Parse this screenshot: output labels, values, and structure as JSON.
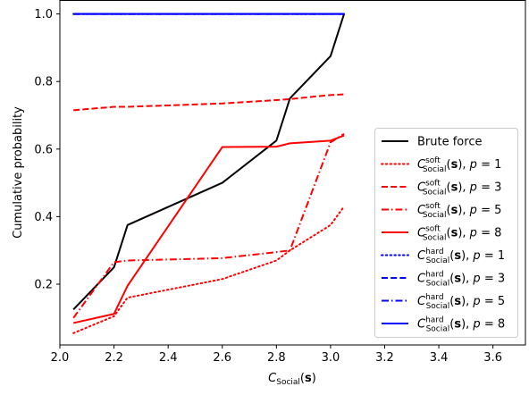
{
  "chart_data": {
    "type": "line",
    "title": "",
    "xlabel": "C_Social(s)",
    "ylabel": "Cumulative probability",
    "xlim": [
      2.0,
      3.72
    ],
    "ylim": [
      0.02,
      1.04
    ],
    "xticks": [
      "2.0",
      "2.2",
      "2.4",
      "2.6",
      "2.8",
      "3.0",
      "3.2",
      "3.4",
      "3.6"
    ],
    "yticks": [
      "0.2",
      "0.4",
      "0.6",
      "0.8",
      "1.0"
    ],
    "grid": false,
    "legend_position": "lower-right",
    "series": [
      {
        "key": "brute",
        "name": "Brute force",
        "color": "#000000",
        "style": "solid",
        "points": [
          [
            2.05,
            0.125
          ],
          [
            2.2,
            0.25
          ],
          [
            2.25,
            0.375
          ],
          [
            2.6,
            0.5
          ],
          [
            2.8,
            0.625
          ],
          [
            2.85,
            0.75
          ],
          [
            3.0,
            0.875
          ],
          [
            3.05,
            1.0
          ]
        ]
      },
      {
        "key": "soft1",
        "name": "C_Social^soft(s), p = 1",
        "color": "#ff0000",
        "style": "dotted",
        "points": [
          [
            2.05,
            0.055
          ],
          [
            2.2,
            0.105
          ],
          [
            2.25,
            0.16
          ],
          [
            2.6,
            0.215
          ],
          [
            2.8,
            0.27
          ],
          [
            2.85,
            0.3
          ],
          [
            3.0,
            0.375
          ],
          [
            3.05,
            0.43
          ]
        ]
      },
      {
        "key": "soft3",
        "name": "C_Social^soft(s), p = 3",
        "color": "#ff0000",
        "style": "dashed",
        "points": [
          [
            2.05,
            0.715
          ],
          [
            2.2,
            0.725
          ],
          [
            2.25,
            0.725
          ],
          [
            2.6,
            0.735
          ],
          [
            2.8,
            0.745
          ],
          [
            2.85,
            0.748
          ],
          [
            3.0,
            0.76
          ],
          [
            3.05,
            0.762
          ]
        ]
      },
      {
        "key": "soft5",
        "name": "C_Social^soft(s), p = 5",
        "color": "#ff0000",
        "style": "dashdot",
        "points": [
          [
            2.05,
            0.1
          ],
          [
            2.2,
            0.265
          ],
          [
            2.25,
            0.27
          ],
          [
            2.6,
            0.277
          ],
          [
            2.8,
            0.295
          ],
          [
            2.85,
            0.3
          ],
          [
            3.0,
            0.62
          ],
          [
            3.05,
            0.645
          ]
        ]
      },
      {
        "key": "soft8",
        "name": "C_Social^soft(s), p = 8",
        "color": "#ff0000",
        "style": "solid",
        "points": [
          [
            2.05,
            0.085
          ],
          [
            2.2,
            0.112
          ],
          [
            2.25,
            0.195
          ],
          [
            2.6,
            0.606
          ],
          [
            2.8,
            0.607
          ],
          [
            2.85,
            0.617
          ],
          [
            3.0,
            0.625
          ],
          [
            3.05,
            0.64
          ]
        ]
      },
      {
        "key": "hard1",
        "name": "C_Social^hard(s), p = 1",
        "color": "#0000ff",
        "style": "dotted",
        "points": [
          [
            2.05,
            1.0
          ],
          [
            3.05,
            1.0
          ]
        ]
      },
      {
        "key": "hard3",
        "name": "C_Social^hard(s), p = 3",
        "color": "#0000ff",
        "style": "dashed",
        "points": [
          [
            2.05,
            1.0
          ],
          [
            3.05,
            1.0
          ]
        ]
      },
      {
        "key": "hard5",
        "name": "C_Social^hard(s), p = 5",
        "color": "#0000ff",
        "style": "dashdot",
        "points": [
          [
            2.05,
            1.0
          ],
          [
            3.05,
            1.0
          ]
        ]
      },
      {
        "key": "hard8",
        "name": "C_Social^hard(s), p = 8",
        "color": "#0000ff",
        "style": "solid",
        "points": [
          [
            2.05,
            1.0
          ],
          [
            3.05,
            1.0
          ]
        ]
      }
    ],
    "legend": {
      "entries": [
        {
          "series": "brute",
          "text": "Brute force"
        },
        {
          "series": "soft1",
          "c": "C",
          "sup": "soft",
          "sub": "Social",
          "arg": "(s)",
          "p": "p = 1"
        },
        {
          "series": "soft3",
          "c": "C",
          "sup": "soft",
          "sub": "Social",
          "arg": "(s)",
          "p": "p = 3"
        },
        {
          "series": "soft5",
          "c": "C",
          "sup": "soft",
          "sub": "Social",
          "arg": "(s)",
          "p": "p = 5"
        },
        {
          "series": "soft8",
          "c": "C",
          "sup": "soft",
          "sub": "Social",
          "arg": "(s)",
          "p": "p = 8"
        },
        {
          "series": "hard1",
          "c": "C",
          "sup": "hard",
          "sub": "Social",
          "arg": "(s)",
          "p": "p = 1"
        },
        {
          "series": "hard3",
          "c": "C",
          "sup": "hard",
          "sub": "Social",
          "arg": "(s)",
          "p": "p = 3"
        },
        {
          "series": "hard5",
          "c": "C",
          "sup": "hard",
          "sub": "Social",
          "arg": "(s)",
          "p": "p = 5"
        },
        {
          "series": "hard8",
          "c": "C",
          "sup": "hard",
          "sub": "Social",
          "arg": "(s)",
          "p": "p = 8"
        }
      ]
    }
  }
}
